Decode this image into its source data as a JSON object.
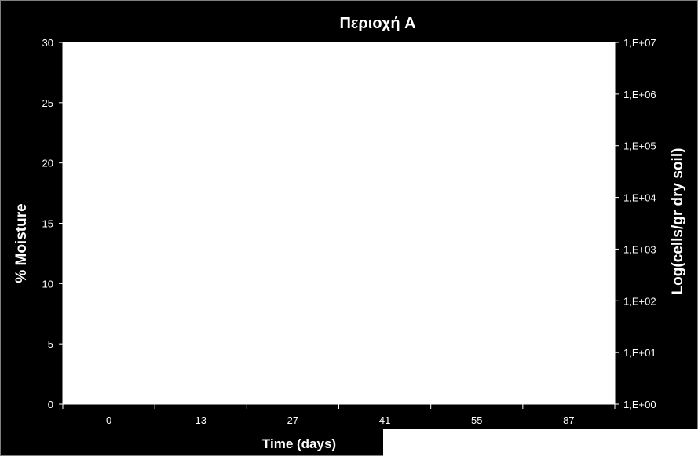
{
  "chart_data": {
    "type": "line",
    "title": "Περιοχή A",
    "xlabel": "Time (days)",
    "ylabel": "% Moisture",
    "y2label": "Log(cells/gr dry soil)",
    "categories": [
      "0",
      "13",
      "27",
      "41",
      "55",
      "87"
    ],
    "ylim": [
      0,
      30
    ],
    "yticks": [
      "0",
      "5",
      "10",
      "15",
      "20",
      "25",
      "30"
    ],
    "y2scale": "log",
    "y2lim": [
      1,
      10000000
    ],
    "y2ticks": [
      "1,E+00",
      "1,E+01",
      "1,E+02",
      "1,E+03",
      "1,E+04",
      "1,E+05",
      "1,E+06",
      "1,E+07"
    ],
    "grid": false,
    "series": [],
    "colors": {
      "background": "#000000",
      "plot_area": "#ffffff",
      "text": "#ffffff"
    }
  }
}
